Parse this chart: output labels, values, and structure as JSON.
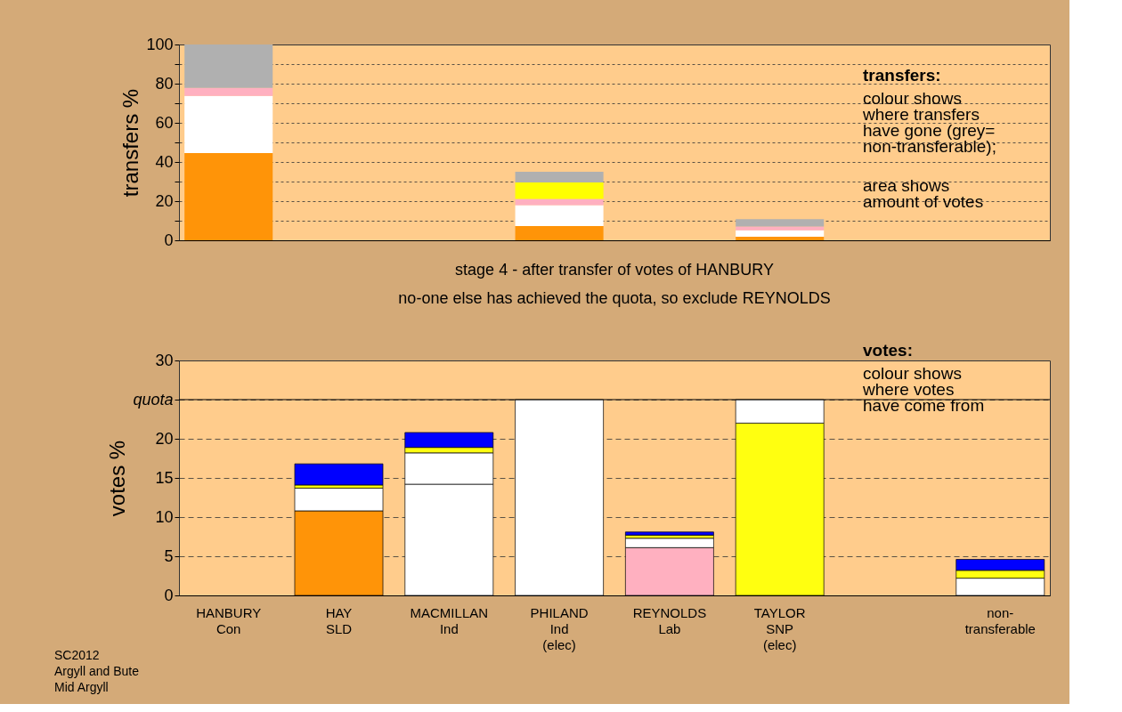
{
  "chart_data": [
    {
      "type": "bar",
      "stacked": true,
      "ylabel": "transfers %",
      "categories": [
        null,
        null,
        null,
        null,
        null,
        null,
        null,
        null
      ],
      "series": [
        {
          "color": "#ff9408",
          "values": [
            44.5,
            null,
            null,
            7.3,
            null,
            1.8,
            null,
            null
          ]
        },
        {
          "color": "#ffffff",
          "values": [
            29.2,
            null,
            null,
            10.6,
            null,
            3.3,
            null,
            null
          ]
        },
        {
          "color": "#ffb0c0",
          "values": [
            4.1,
            null,
            null,
            3.2,
            null,
            1.9,
            null,
            null
          ]
        },
        {
          "color": "#ffff00",
          "values": [
            null,
            null,
            null,
            8.5,
            null,
            null,
            null,
            null
          ]
        },
        {
          "color": "#b0b0b0",
          "values": [
            22.2,
            null,
            null,
            5.4,
            null,
            3.8,
            null,
            null
          ]
        }
      ],
      "ylim": [
        0,
        100
      ],
      "yticks": [
        0,
        {
          "value": 10,
          "label": null
        },
        20,
        {
          "value": 30,
          "label": null
        },
        40,
        {
          "value": 50,
          "label": null
        },
        60,
        {
          "value": 70,
          "label": null
        },
        80,
        {
          "value": 90,
          "label": null
        },
        100
      ],
      "grid": "y",
      "tick_labels": "y",
      "legend": false,
      "annotations": [
        "transfers:",
        "colour shows\nwhere transfers\nhave gone (grey=\nnon-transferable);",
        "area shows\namount of votes"
      ]
    },
    {
      "type": "bar",
      "stacked": true,
      "ylabel": "votes %",
      "title": "stage 4 - after transfer of votes of HANBURY",
      "subtitle": "no-one else has achieved the quota, so exclude REYNOLDS",
      "categories": [
        "HANBURY\nCon",
        "HAY\nSLD",
        "MACMILLAN\nInd",
        "PHILAND\nInd\n(elec)",
        "REYNOLDS\nLab",
        "TAYLOR\nSNP\n(elec)",
        null,
        "non-\ntransferable"
      ],
      "series": [
        {
          "colors": [
            "#0000ff",
            "#ff9408",
            "#ffffff",
            "#ffffff",
            "#ffb0c0",
            "#ffff10",
            "#ffffff",
            "#ffffff"
          ],
          "values": [
            null,
            10.8,
            14.2,
            25,
            6.1,
            22,
            null,
            null
          ]
        },
        {
          "color": "#ffffff",
          "values": [
            null,
            2.9,
            4.0,
            null,
            1.2,
            3.0,
            null,
            2.2
          ]
        },
        {
          "color": "#ffff10",
          "values": [
            null,
            0.4,
            0.7,
            null,
            0.4,
            null,
            null,
            1.0
          ]
        },
        {
          "color": "#0000ff",
          "values": [
            null,
            2.7,
            1.9,
            null,
            0.4,
            null,
            null,
            1.4
          ]
        }
      ],
      "ylim": [
        0,
        30
      ],
      "yticks": [
        0,
        5,
        10,
        15,
        20,
        {
          "value": 25,
          "label": "quota"
        },
        30
      ],
      "ref_lines": [
        {
          "axis": "y",
          "value": 25,
          "label": null,
          "line_style": "solid"
        }
      ],
      "grid": "y",
      "legend": false,
      "annotations": [
        "votes:",
        "colour shows\nwhere votes\nhave come from",
        "SC2012\nArgyll and Bute\nMid Argyll"
      ]
    }
  ]
}
